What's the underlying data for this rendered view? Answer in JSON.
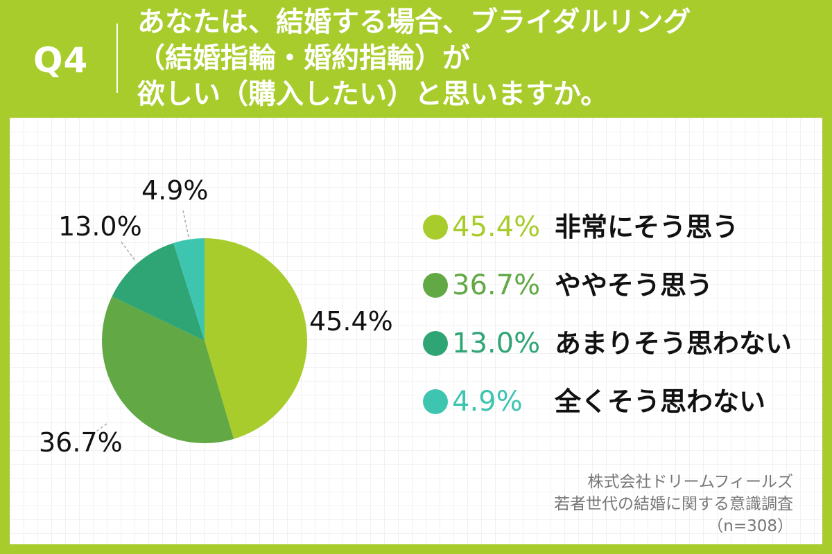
{
  "header": {
    "question_label": "Q4",
    "question_lines": [
      "あなたは、結婚する場合、ブライダルリング",
      "（結婚指輪・婚約指輪）が",
      "欲しい（購入したい）と思いますか。"
    ]
  },
  "chart_data": {
    "type": "pie",
    "categories": [
      "非常にそう思う",
      "ややそう思う",
      "あまりそう思わない",
      "全くそう思わない"
    ],
    "values": [
      45.4,
      36.7,
      13.0,
      4.9
    ],
    "value_labels": [
      "45.4%",
      "36.7%",
      "13.0%",
      "4.9%"
    ],
    "colors": [
      "#a8cc2c",
      "#62a845",
      "#2fa576",
      "#3ec5b0"
    ],
    "legend_placement": "right"
  },
  "legend": {
    "items": [
      {
        "value": "45.4%",
        "label": "非常にそう思う",
        "color": "#a8cc2c"
      },
      {
        "value": "36.7%",
        "label": "ややそう思う",
        "color": "#62a845"
      },
      {
        "value": "13.0%",
        "label": "あまりそう思わない",
        "color": "#2fa576"
      },
      {
        "value": "4.9%",
        "label": "全くそう思わない",
        "color": "#3ec5b0"
      }
    ]
  },
  "source": {
    "line1": "株式会社ドリームフィールズ",
    "line2": "若者世代の結婚に関する意識調査",
    "line3": "（n=308）"
  }
}
